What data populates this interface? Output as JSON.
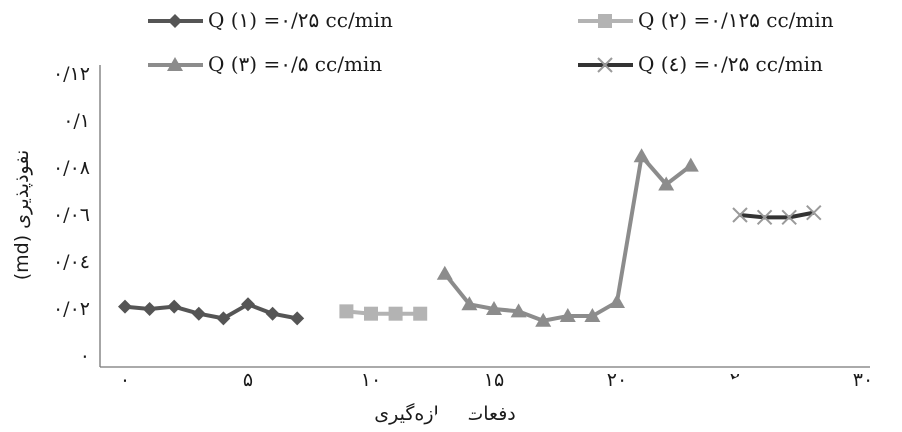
{
  "chart_data": {
    "type": "line",
    "xlabel": "دفعات اندازه‌گیری",
    "ylabel": "نفوذپذیری (md)",
    "xlim": [
      -1,
      30
    ],
    "ylim": [
      0,
      0.12
    ],
    "x_ticks": [
      {
        "value": 0,
        "label": "۰"
      },
      {
        "value": 5,
        "label": "۵"
      },
      {
        "value": 10,
        "label": "۱۰"
      },
      {
        "value": 15,
        "label": "۱۵"
      },
      {
        "value": 20,
        "label": "۲۰"
      },
      {
        "value": 25,
        "label": "۲۵"
      },
      {
        "value": 30,
        "label": "۳۰"
      }
    ],
    "y_ticks": [
      {
        "value": 0,
        "label": "۰"
      },
      {
        "value": 0.02,
        "label": "۰/۰۲"
      },
      {
        "value": 0.04,
        "label": "۰/۰٤"
      },
      {
        "value": 0.06,
        "label": "۰/۰٦"
      },
      {
        "value": 0.08,
        "label": "۰/۰۸"
      },
      {
        "value": 0.1,
        "label": "۰/۱"
      },
      {
        "value": 0.12,
        "label": "۰/۱۲"
      }
    ],
    "legend_position": "top",
    "series": [
      {
        "name": "Q (۱) =۰/۲۵ cc/min",
        "color": "#555555",
        "marker": "diamond",
        "x": [
          0,
          1,
          2,
          3,
          4,
          5,
          6,
          7
        ],
        "y": [
          0.021,
          0.02,
          0.021,
          0.018,
          0.016,
          0.022,
          0.018,
          0.016
        ]
      },
      {
        "name": "Q (۲) =۰/۱۲۵ cc/min",
        "color": "#b3b3b3",
        "marker": "square",
        "x": [
          9,
          10,
          11,
          12
        ],
        "y": [
          0.019,
          0.018,
          0.018,
          0.018
        ]
      },
      {
        "name": "Q (۳) =۰/۵ cc/min",
        "color": "#8c8c8c",
        "marker": "triangle",
        "x": [
          13,
          14,
          15,
          16,
          17,
          18,
          19,
          20,
          21,
          22,
          23
        ],
        "y": [
          0.035,
          0.022,
          0.02,
          0.019,
          0.015,
          0.017,
          0.017,
          0.023,
          0.085,
          0.073,
          0.081
        ]
      },
      {
        "name": "Q (٤) =۰/۲۵ cc/min",
        "color": "#333333",
        "marker": "x",
        "x": [
          25,
          26,
          27,
          28
        ],
        "y": [
          0.06,
          0.059,
          0.059,
          0.061
        ]
      }
    ],
    "grid": false
  }
}
